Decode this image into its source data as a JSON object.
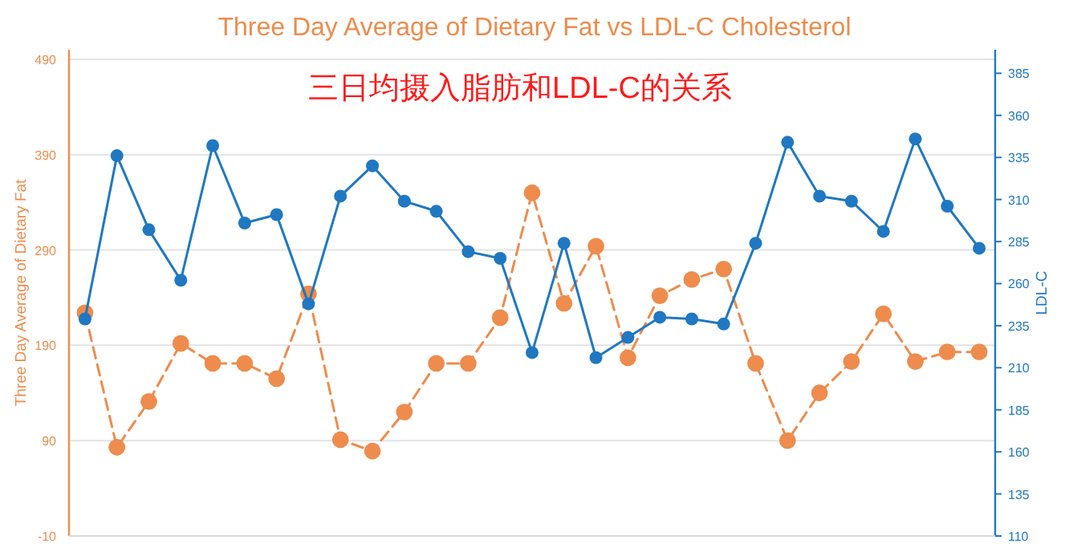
{
  "chart_data": {
    "type": "line",
    "title": "Three Day Average of Dietary Fat vs LDL-C Cholesterol",
    "subtitle": "三日均摄入脂肪和LDL-C的关系",
    "ylabel": "Three Day Average of Dietary Fat",
    "y2label": "LDL-C",
    "categories": [
      null,
      null,
      null,
      null,
      null,
      null,
      null,
      null,
      null,
      null,
      null,
      null,
      null,
      null,
      null,
      null,
      null,
      null,
      null,
      null,
      null,
      null,
      null,
      null,
      null,
      null,
      null,
      null,
      null
    ],
    "series": [
      {
        "color": "#ed8c4d",
        "line_style": "dashed",
        "values": [
          224,
          83,
          131,
          192,
          171,
          171,
          155,
          244,
          91,
          79,
          120,
          171,
          171,
          219,
          350,
          234,
          294,
          177,
          242,
          259,
          270,
          171,
          90,
          140,
          173,
          223,
          173,
          183,
          183
        ]
      },
      {
        "color": "#1f78c1",
        "axis": "y2",
        "line_style": "solid",
        "values": [
          239,
          336,
          292,
          262,
          342,
          296,
          301,
          248,
          312,
          330,
          309,
          303,
          279,
          275,
          219,
          284,
          216,
          228,
          240,
          239,
          236,
          284,
          344,
          312,
          309,
          291,
          346,
          306,
          281
        ]
      }
    ],
    "ylim": [
      -10,
      500
    ],
    "yticks": [
      -10,
      90,
      190,
      290,
      390,
      490
    ],
    "y2lim": [
      110,
      399
    ],
    "y2ticks": [
      110,
      135,
      160,
      185,
      210,
      235,
      260,
      285,
      310,
      335,
      360,
      385
    ],
    "grid": "y",
    "marker": "circle"
  }
}
